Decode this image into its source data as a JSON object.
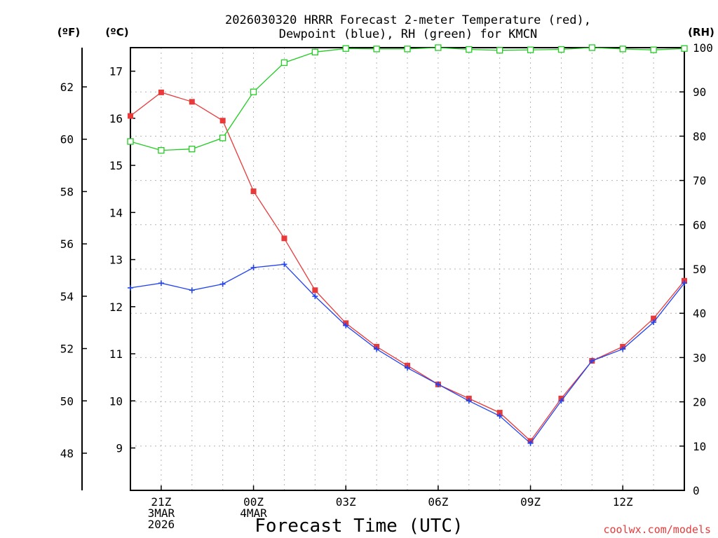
{
  "chart_data": {
    "type": "line",
    "title_lines": [
      "2026030320 HRRR Forecast 2-meter Temperature (red),",
      "Dewpoint (blue), RH (green) for KMCN"
    ],
    "units": {
      "fahrenheit": "(ºF)",
      "celsius": "(ºC)",
      "rh": "(RH)"
    },
    "xlabel": "Forecast Time (UTC)",
    "credit": "coolwx.com/models",
    "x_hours": [
      20,
      21,
      22,
      23,
      24,
      25,
      26,
      27,
      28,
      29,
      30,
      31,
      32,
      33,
      34,
      35,
      36,
      37,
      38
    ],
    "xlim": [
      20,
      38
    ],
    "x_ticks": [
      {
        "hour": 21,
        "lines": [
          "21Z",
          "3MAR",
          "2026"
        ]
      },
      {
        "hour": 24,
        "lines": [
          "00Z",
          "4MAR"
        ]
      },
      {
        "hour": 27,
        "lines": [
          "03Z"
        ]
      },
      {
        "hour": 30,
        "lines": [
          "06Z"
        ]
      },
      {
        "hour": 33,
        "lines": [
          "09Z"
        ]
      },
      {
        "hour": 36,
        "lines": [
          "12Z"
        ]
      }
    ],
    "left_axis_c": {
      "ylim": [
        8.1,
        17.5
      ],
      "ticks": [
        9,
        10,
        11,
        12,
        13,
        14,
        15,
        16,
        17
      ]
    },
    "left_axis_f": {
      "ticks": [
        48,
        50,
        52,
        54,
        56,
        58,
        60,
        62
      ]
    },
    "right_axis_rh": {
      "ylim": [
        0,
        100
      ],
      "ticks": [
        0,
        10,
        20,
        30,
        40,
        50,
        60,
        70,
        80,
        90,
        100
      ]
    },
    "series": [
      {
        "name": "2-meter Temperature",
        "color": "#e83a3a",
        "marker": "filled-square",
        "axis": "celsius",
        "values": [
          16.05,
          16.55,
          16.35,
          15.95,
          14.45,
          13.45,
          12.35,
          11.65,
          11.15,
          10.75,
          10.35,
          10.05,
          9.75,
          9.15,
          10.05,
          10.85,
          11.15,
          11.75,
          12.55
        ]
      },
      {
        "name": "Dewpoint",
        "color": "#2244ee",
        "marker": "plus",
        "axis": "celsius",
        "values": [
          12.4,
          12.5,
          12.35,
          12.48,
          12.83,
          12.9,
          12.22,
          11.6,
          11.1,
          10.7,
          10.35,
          10.0,
          9.68,
          9.1,
          10.0,
          10.85,
          11.1,
          11.67,
          12.5
        ]
      },
      {
        "name": "RH",
        "color": "#22cc22",
        "marker": "open-square",
        "axis": "rh",
        "values": [
          78.8,
          76.8,
          77.1,
          79.6,
          90.0,
          96.6,
          99.0,
          99.8,
          99.7,
          99.7,
          100.0,
          99.6,
          99.4,
          99.5,
          99.6,
          100.0,
          99.7,
          99.5,
          99.8
        ]
      }
    ]
  }
}
